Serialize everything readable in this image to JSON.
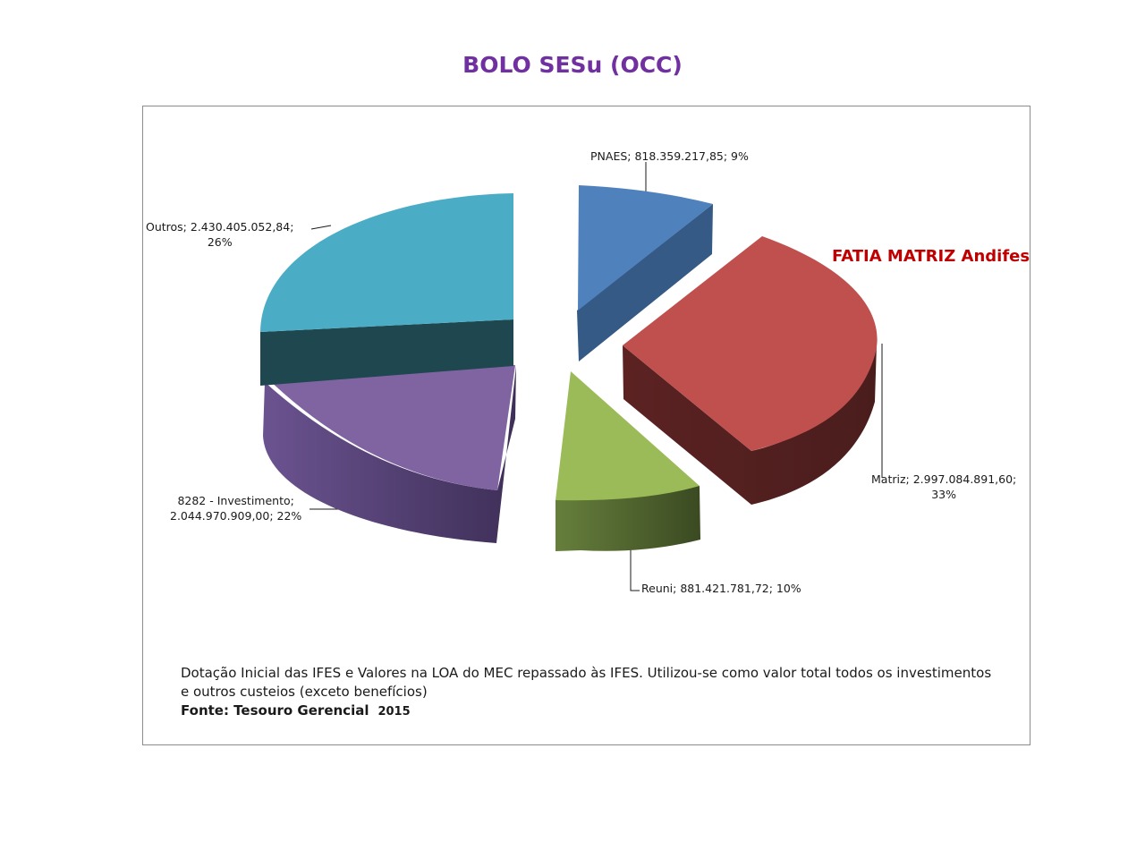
{
  "title": "BOLO SESu (OCC)",
  "callout": "FATIA MATRIZ Andifes",
  "footnote": {
    "text": "Dotação Inicial das IFES e Valores na LOA do MEC repassado às IFES. Utilizou-se como valor total todos os investimentos e outros custeios (exceto benefícios)",
    "source": "Fonte: Tesouro Gerencial",
    "year": "2015"
  },
  "chart_data": {
    "type": "pie",
    "style": "3d-exploded",
    "title": "BOLO SESu (OCC)",
    "slices": [
      {
        "name": "PNAES",
        "value": 818359217.85,
        "percent": 9,
        "color": "#4f81bd",
        "label_lines": [
          "PNAES; 818.359.217,85; 9%"
        ]
      },
      {
        "name": "Matriz",
        "value": 2997084891.6,
        "percent": 33,
        "color": "#c0504d",
        "label_lines": [
          "Matriz; 2.997.084.891,60;",
          "33%"
        ]
      },
      {
        "name": "Reuni",
        "value": 881421781.72,
        "percent": 10,
        "color": "#9bbb59",
        "label_lines": [
          "Reuni; 881.421.781,72; 10%"
        ]
      },
      {
        "name": "8282 - Investimento",
        "value": 2044970909.0,
        "percent": 22,
        "color": "#8064a2",
        "label_lines": [
          "8282 - Investimento;",
          "2.044.970.909,00; 22%"
        ]
      },
      {
        "name": "Outros",
        "value": 2430405052.84,
        "percent": 26,
        "color": "#4bacc6",
        "label_lines": [
          "Outros; 2.430.405.052,84;",
          "26%"
        ]
      }
    ]
  }
}
